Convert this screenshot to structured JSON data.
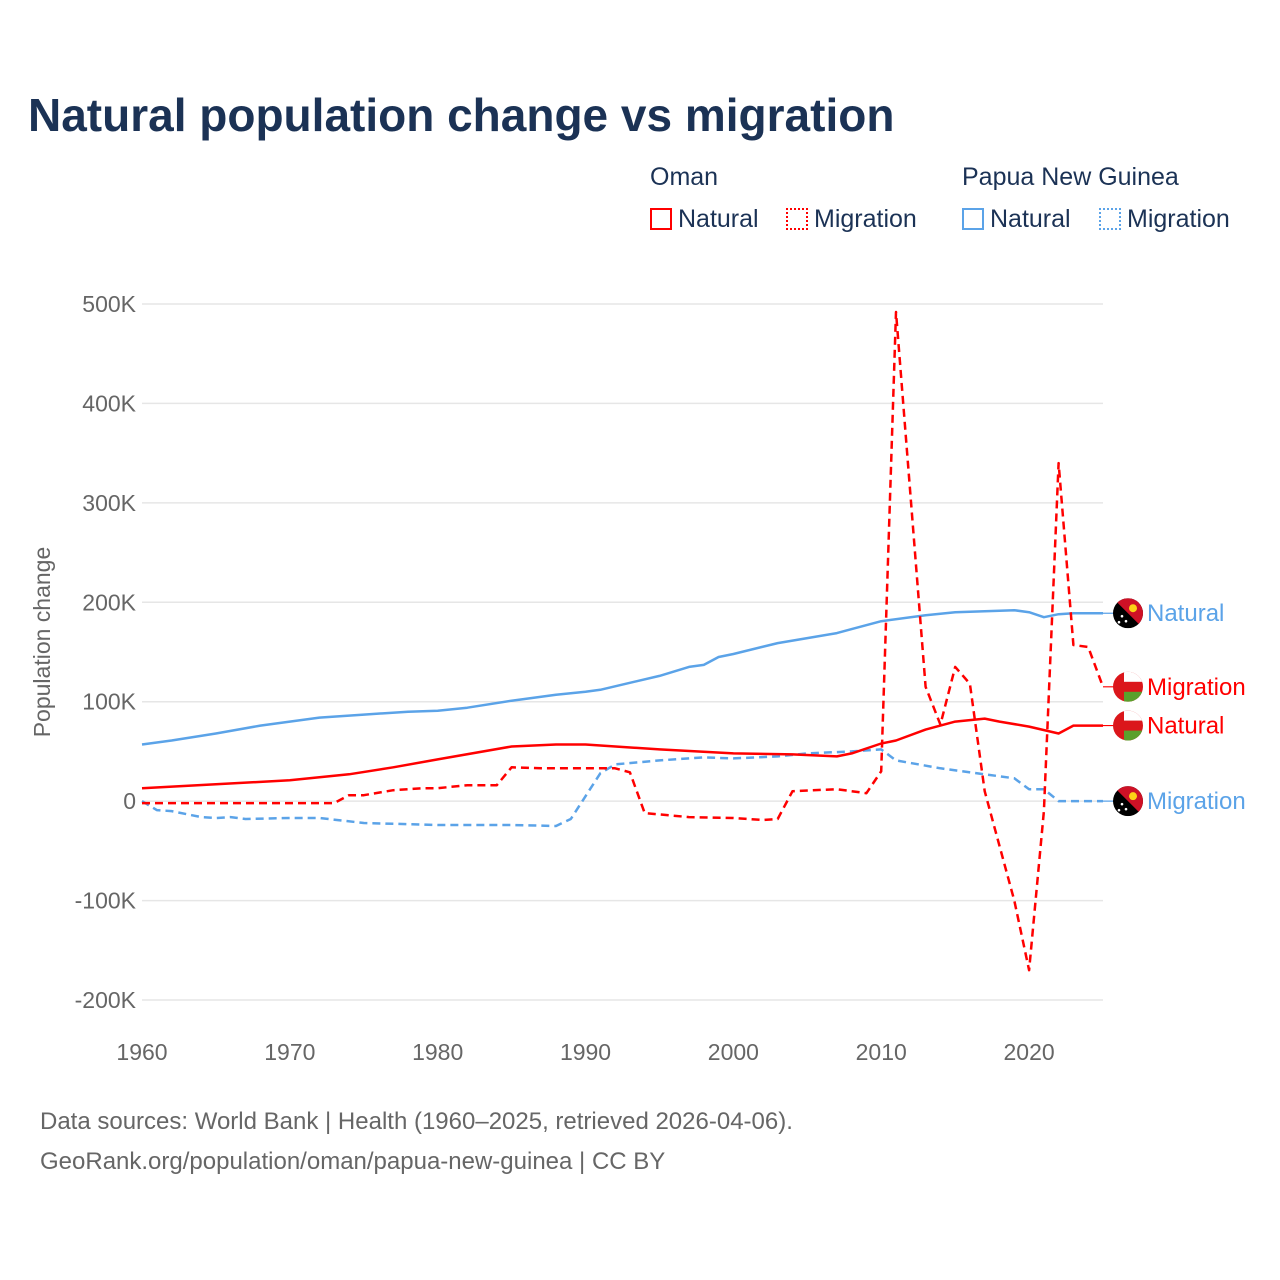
{
  "title": "Natural population change vs migration",
  "legend": {
    "groups": [
      {
        "name": "Oman",
        "items": [
          "Natural",
          "Migration"
        ]
      },
      {
        "name": "Papua New Guinea",
        "items": [
          "Natural",
          "Migration"
        ]
      }
    ]
  },
  "footer": {
    "line1": "Data sources: World Bank | Health (1960–2025, retrieved 2026-04-06).",
    "line2": "GeoRank.org/population/oman/papua-new-guinea | CC BY"
  },
  "chart_data": {
    "type": "line",
    "title": "Natural population change vs migration",
    "xlabel": "",
    "ylabel": "Population change",
    "xlim": [
      1960,
      2025
    ],
    "ylim": [
      -200000,
      500000
    ],
    "xticks": [
      1960,
      1970,
      1980,
      1990,
      2000,
      2010,
      2020
    ],
    "xtick_labels": [
      "1960",
      "1970",
      "1980",
      "1990",
      "2000",
      "2010",
      "2020"
    ],
    "yticks": [
      -200000,
      -100000,
      0,
      100000,
      200000,
      300000,
      400000,
      500000
    ],
    "ytick_labels": [
      "-200K",
      "-100K",
      "0",
      "100K",
      "200K",
      "300K",
      "400K",
      "500K"
    ],
    "grid": true,
    "legend_position": "top-right",
    "series": [
      {
        "name": "Papua New Guinea Natural",
        "label": "Natural",
        "color": "#5ba3e8",
        "dash": false,
        "x": [
          1960,
          1962,
          1965,
          1968,
          1970,
          1972,
          1975,
          1978,
          1980,
          1982,
          1985,
          1988,
          1990,
          1991,
          1993,
          1995,
          1997,
          1998,
          1999,
          2000,
          2003,
          2005,
          2007,
          2008,
          2010,
          2013,
          2015,
          2017,
          2019,
          2020,
          2021,
          2022,
          2023,
          2025
        ],
        "y": [
          57000,
          61000,
          68000,
          76000,
          80000,
          84000,
          87000,
          90000,
          91000,
          94000,
          101000,
          107000,
          110000,
          112000,
          119000,
          126000,
          135000,
          137000,
          145000,
          148000,
          159000,
          164000,
          169000,
          173000,
          181000,
          187000,
          190000,
          191000,
          192000,
          190000,
          185000,
          188000,
          189000,
          189000
        ]
      },
      {
        "name": "Papua New Guinea Migration",
        "label": "Migration",
        "color": "#5ba3e8",
        "dash": true,
        "x": [
          1960,
          1961,
          1962,
          1964,
          1965,
          1966,
          1967,
          1970,
          1972,
          1975,
          1980,
          1985,
          1988,
          1989,
          1991,
          1992,
          1995,
          1998,
          2000,
          2003,
          2005,
          2008,
          2010,
          2011,
          2014,
          2017,
          2019,
          2020,
          2021,
          2022,
          2025
        ],
        "y": [
          0,
          -9000,
          -10000,
          -16000,
          -17000,
          -16000,
          -18000,
          -17000,
          -17000,
          -22000,
          -24000,
          -24000,
          -25000,
          -18000,
          28000,
          37000,
          41000,
          44000,
          43000,
          45000,
          48000,
          50000,
          52000,
          41000,
          33000,
          27000,
          23000,
          12000,
          12000,
          0,
          0
        ]
      },
      {
        "name": "Oman Natural",
        "label": "Natural",
        "color": "#ff0000",
        "dash": false,
        "x": [
          1960,
          1965,
          1970,
          1974,
          1977,
          1980,
          1985,
          1988,
          1990,
          1995,
          2000,
          2004,
          2007,
          2008,
          2010,
          2011,
          2013,
          2015,
          2017,
          2018,
          2020,
          2022,
          2023,
          2025
        ],
        "y": [
          13000,
          17000,
          21000,
          27000,
          34000,
          42000,
          55000,
          57000,
          57000,
          52000,
          48000,
          47000,
          45000,
          48000,
          58000,
          61000,
          72000,
          80000,
          83000,
          80000,
          75000,
          68000,
          76000,
          76000
        ]
      },
      {
        "name": "Oman Migration",
        "label": "Migration",
        "color": "#ff0000",
        "dash": true,
        "x": [
          1960,
          1973,
          1974,
          1975,
          1977,
          1979,
          1980,
          1982,
          1984,
          1985,
          1987,
          1992,
          1993,
          1994,
          1997,
          2000,
          2002,
          2003,
          2004,
          2007,
          2009,
          2010,
          2011,
          2013,
          2014,
          2015,
          2016,
          2017,
          2019,
          2020,
          2021,
          2022,
          2023,
          2024,
          2025
        ],
        "y": [
          -2000,
          -2000,
          6000,
          6000,
          11000,
          13000,
          13000,
          16000,
          16000,
          34000,
          33000,
          33000,
          29000,
          -12000,
          -16000,
          -17000,
          -19000,
          -18000,
          10000,
          12000,
          8000,
          30000,
          492000,
          115000,
          77000,
          135000,
          118000,
          10000,
          -100000,
          -170000,
          -10000,
          340000,
          157000,
          155000,
          115000
        ]
      }
    ]
  }
}
